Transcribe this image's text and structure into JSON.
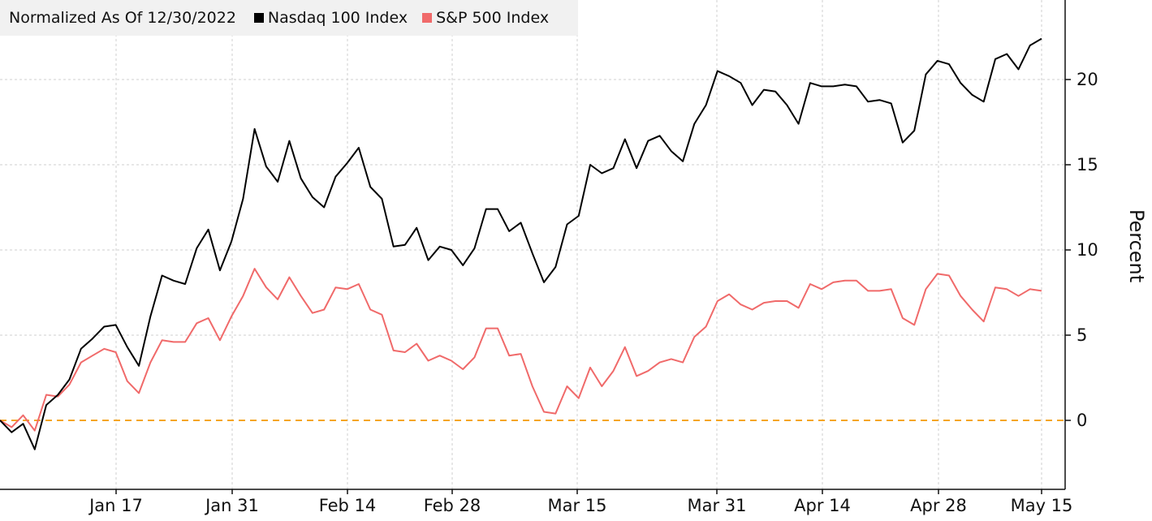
{
  "chart_data": {
    "type": "line",
    "title": "Normalized As Of 12/30/2022",
    "ylabel": "Percent",
    "ylim": [
      -4,
      24.5
    ],
    "yticks": [
      0,
      5,
      10,
      15,
      20
    ],
    "xticks": [
      "Jan 17",
      "Jan 31",
      "Feb 14",
      "Feb 28",
      "Mar 15",
      "Mar 31",
      "Apr 14",
      "Apr 28",
      "May 15"
    ],
    "grid": true,
    "legend_position": "top-left",
    "reference_line": {
      "value": 0,
      "color": "#f5a623",
      "style": "dashed"
    },
    "series": [
      {
        "name": "Nasdaq 100 Index",
        "color": "#000000",
        "values": [
          0,
          -0.7,
          -0.2,
          -1.7,
          0.9,
          1.5,
          2.4,
          4.2,
          4.8,
          5.5,
          5.6,
          4.3,
          3.2,
          6.1,
          8.5,
          8.2,
          8.0,
          10.1,
          11.2,
          8.8,
          10.5,
          13.0,
          17.1,
          14.9,
          14.0,
          16.4,
          14.2,
          13.1,
          12.5,
          14.3,
          15.1,
          16.0,
          13.7,
          13.0,
          10.2,
          10.3,
          11.3,
          9.4,
          10.2,
          10.0,
          9.1,
          10.1,
          12.4,
          12.4,
          11.1,
          11.6,
          9.8,
          8.1,
          9.0,
          11.5,
          12.0,
          15.0,
          14.5,
          14.8,
          16.5,
          14.8,
          16.4,
          16.7,
          15.8,
          15.2,
          17.4,
          18.5,
          20.5,
          20.2,
          19.8,
          18.5,
          19.4,
          19.3,
          18.5,
          17.4,
          19.8,
          19.6,
          19.6,
          19.7,
          19.6,
          18.7,
          18.8,
          18.6,
          16.3,
          17.0,
          20.3,
          21.1,
          20.9,
          19.8,
          19.1,
          18.7,
          21.2,
          21.5,
          20.6,
          22.0,
          22.4
        ]
      },
      {
        "name": "S&P 500 Index",
        "color": "#f06a6a",
        "values": [
          0,
          -0.4,
          0.3,
          -0.6,
          1.5,
          1.4,
          2.1,
          3.4,
          3.8,
          4.2,
          4.0,
          2.3,
          1.6,
          3.4,
          4.7,
          4.6,
          4.6,
          5.7,
          6.0,
          4.7,
          6.1,
          7.3,
          8.9,
          7.8,
          7.1,
          8.4,
          7.3,
          6.3,
          6.5,
          7.8,
          7.7,
          8.0,
          6.5,
          6.2,
          4.1,
          4.0,
          4.5,
          3.5,
          3.8,
          3.5,
          3.0,
          3.7,
          5.4,
          5.4,
          3.8,
          3.9,
          2.0,
          0.5,
          0.4,
          2.0,
          1.3,
          3.1,
          2.0,
          2.9,
          4.3,
          2.6,
          2.9,
          3.4,
          3.6,
          3.4,
          4.9,
          5.5,
          7.0,
          7.4,
          6.8,
          6.5,
          6.9,
          7.0,
          7.0,
          6.6,
          8.0,
          7.7,
          8.1,
          8.2,
          8.2,
          7.6,
          7.6,
          7.7,
          6.0,
          5.6,
          7.7,
          8.6,
          8.5,
          7.3,
          6.5,
          5.8,
          7.8,
          7.7,
          7.3,
          7.7,
          7.6
        ]
      }
    ]
  }
}
